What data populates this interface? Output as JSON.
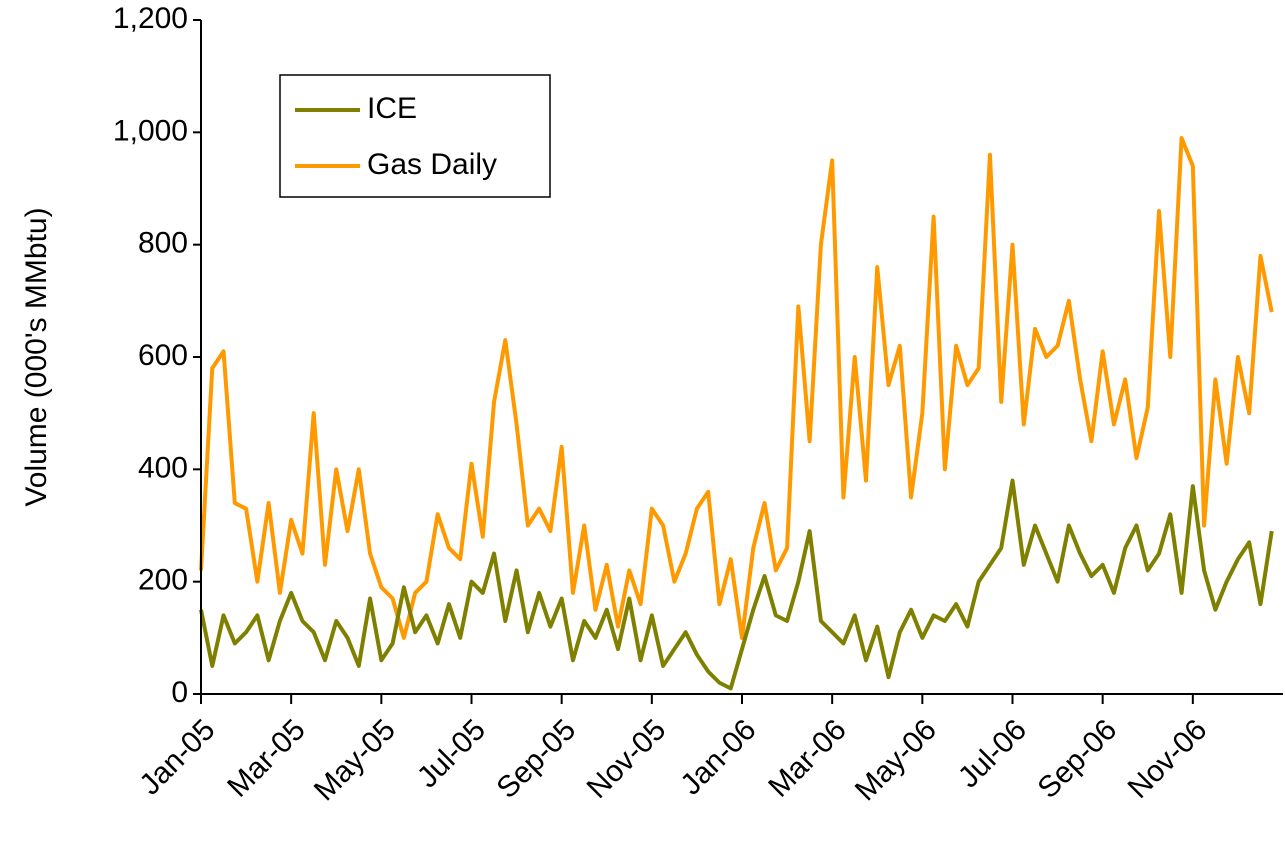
{
  "chart_data": {
    "type": "line",
    "y_label": "Volume (000's MMbtu)",
    "x": [
      0,
      0.25,
      0.5,
      0.75,
      1,
      1.25,
      1.5,
      1.75,
      2,
      2.25,
      2.5,
      2.75,
      3,
      3.25,
      3.5,
      3.75,
      4,
      4.25,
      4.5,
      4.75,
      5,
      5.25,
      5.5,
      5.75,
      6,
      6.25,
      6.5,
      6.75,
      7,
      7.25,
      7.5,
      7.75,
      8,
      8.25,
      8.5,
      8.75,
      9,
      9.25,
      9.5,
      9.75,
      10,
      10.25,
      10.5,
      10.75,
      11,
      11.25,
      11.5,
      11.75,
      12,
      12.25,
      12.5,
      12.75,
      13,
      13.25,
      13.5,
      13.75,
      14,
      14.25,
      14.5,
      14.75,
      15,
      15.25,
      15.5,
      15.75,
      16,
      16.25,
      16.5,
      16.75,
      17,
      17.25,
      17.5,
      17.75,
      18,
      18.25,
      18.5,
      18.75,
      19,
      19.25,
      19.5,
      19.75,
      20,
      20.25,
      20.5,
      20.75,
      21,
      21.25,
      21.5,
      21.75,
      22,
      22.25,
      22.5,
      22.75,
      23,
      23.25,
      23.5,
      23.75
    ],
    "series": [
      {
        "name": "ICE",
        "color": "#808000",
        "values": [
          150,
          50,
          140,
          90,
          110,
          140,
          60,
          130,
          180,
          130,
          110,
          60,
          130,
          100,
          50,
          170,
          60,
          90,
          190,
          110,
          140,
          90,
          160,
          100,
          200,
          180,
          250,
          130,
          220,
          110,
          180,
          120,
          170,
          60,
          130,
          100,
          150,
          80,
          170,
          60,
          140,
          50,
          80,
          110,
          70,
          40,
          20,
          10,
          80,
          150,
          210,
          140,
          130,
          200,
          290,
          130,
          110,
          90,
          140,
          60,
          120,
          30,
          110,
          150,
          100,
          140,
          130,
          160,
          120,
          200,
          230,
          260,
          380,
          230,
          300,
          250,
          200,
          300,
          250,
          210,
          230,
          180,
          260,
          300,
          220,
          250,
          320,
          180,
          370,
          220,
          150,
          200,
          240,
          270,
          160,
          290
        ]
      },
      {
        "name": "Gas Daily",
        "color": "#ff9900",
        "values": [
          220,
          580,
          610,
          340,
          330,
          200,
          340,
          180,
          310,
          250,
          500,
          230,
          400,
          290,
          400,
          250,
          190,
          170,
          100,
          180,
          200,
          320,
          260,
          240,
          410,
          280,
          520,
          630,
          480,
          300,
          330,
          290,
          440,
          180,
          300,
          150,
          230,
          120,
          220,
          160,
          330,
          300,
          200,
          250,
          330,
          360,
          160,
          240,
          100,
          260,
          340,
          220,
          260,
          690,
          450,
          800,
          950,
          350,
          600,
          380,
          760,
          550,
          620,
          350,
          500,
          850,
          400,
          620,
          550,
          580,
          960,
          520,
          800,
          480,
          650,
          600,
          620,
          700,
          560,
          450,
          610,
          480,
          560,
          420,
          510,
          860,
          600,
          990,
          940,
          300,
          560,
          410,
          600,
          500,
          780,
          680
        ]
      }
    ],
    "xlim": [
      0,
      24
    ],
    "xticks": [
      {
        "value": 0,
        "label": "Jan-05"
      },
      {
        "value": 2,
        "label": "Mar-05"
      },
      {
        "value": 4,
        "label": "May-05"
      },
      {
        "value": 6,
        "label": "Jul-05"
      },
      {
        "value": 8,
        "label": "Sep-05"
      },
      {
        "value": 10,
        "label": "Nov-05"
      },
      {
        "value": 12,
        "label": "Jan-06"
      },
      {
        "value": 14,
        "label": "Mar-06"
      },
      {
        "value": 16,
        "label": "May-06"
      },
      {
        "value": 18,
        "label": "Jul-06"
      },
      {
        "value": 20,
        "label": "Sep-06"
      },
      {
        "value": 22,
        "label": "Nov-06"
      }
    ],
    "ylim": [
      0,
      1200
    ],
    "yticks": [
      0,
      200,
      400,
      600,
      800,
      {
        "value": 1000,
        "label": "1,000"
      },
      {
        "value": 1200,
        "label": "1,200"
      }
    ],
    "grid": false,
    "legend": "top-left"
  }
}
